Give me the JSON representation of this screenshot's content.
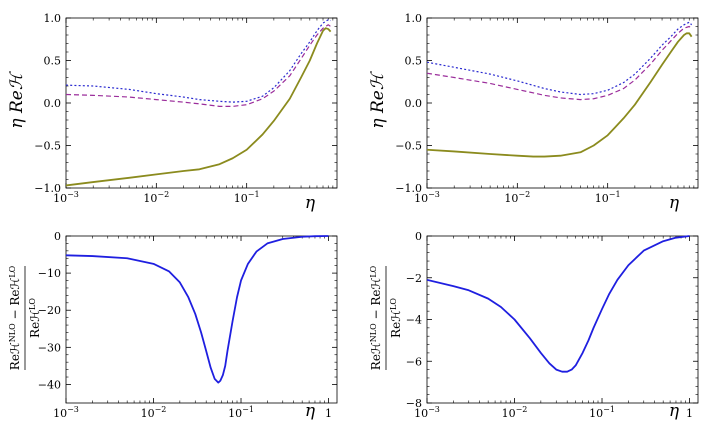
{
  "chart_data": [
    {
      "type": "line",
      "panel": "top-left",
      "xscale": "log",
      "xlim": [
        0.001,
        1
      ],
      "ylim": [
        -1.0,
        1.0
      ],
      "xlabel": "η",
      "ylabel": "η Reℋ",
      "x_ticks": [
        {
          "value": 0.001,
          "base": "10",
          "exp": "−3"
        },
        {
          "value": 0.01,
          "base": "10",
          "exp": "−2"
        },
        {
          "value": 0.1,
          "base": "10",
          "exp": "−1"
        }
      ],
      "y_ticks": [
        {
          "value": 1.0,
          "label": "1.0"
        },
        {
          "value": 0.5,
          "label": "0.5"
        },
        {
          "value": 0.0,
          "label": "0.0"
        },
        {
          "value": -0.5,
          "label": "−0.5"
        },
        {
          "value": -1.0,
          "label": "−1.0"
        }
      ],
      "series": [
        {
          "name": "solid",
          "color": "#8b8b1e",
          "style": "solid",
          "x": [
            0.001,
            0.002,
            0.005,
            0.01,
            0.02,
            0.03,
            0.05,
            0.07,
            0.1,
            0.15,
            0.2,
            0.3,
            0.4,
            0.5,
            0.6,
            0.7,
            0.75,
            0.8,
            0.85
          ],
          "y": [
            -0.97,
            -0.93,
            -0.88,
            -0.84,
            -0.8,
            -0.78,
            -0.72,
            -0.65,
            -0.55,
            -0.37,
            -0.21,
            0.05,
            0.3,
            0.5,
            0.7,
            0.85,
            0.88,
            0.87,
            0.84
          ]
        },
        {
          "name": "dashed",
          "color": "#9b2d9b",
          "style": "dashed",
          "x": [
            0.001,
            0.002,
            0.005,
            0.01,
            0.02,
            0.03,
            0.05,
            0.07,
            0.1,
            0.15,
            0.2,
            0.3,
            0.4,
            0.5,
            0.6,
            0.7,
            0.8,
            0.85
          ],
          "y": [
            0.1,
            0.09,
            0.07,
            0.04,
            0.01,
            -0.01,
            -0.04,
            -0.04,
            -0.02,
            0.05,
            0.14,
            0.32,
            0.52,
            0.68,
            0.8,
            0.88,
            0.92,
            0.9
          ]
        },
        {
          "name": "dotted",
          "color": "#2a2ad0",
          "style": "dotted",
          "x": [
            0.001,
            0.002,
            0.005,
            0.01,
            0.02,
            0.03,
            0.05,
            0.07,
            0.1,
            0.15,
            0.2,
            0.3,
            0.4,
            0.5,
            0.6,
            0.7,
            0.8,
            0.85
          ],
          "y": [
            0.21,
            0.2,
            0.16,
            0.11,
            0.07,
            0.04,
            0.02,
            0.01,
            0.02,
            0.08,
            0.18,
            0.38,
            0.58,
            0.72,
            0.85,
            0.94,
            0.98,
            0.97
          ]
        }
      ]
    },
    {
      "type": "line",
      "panel": "top-right",
      "xscale": "log",
      "xlim": [
        0.001,
        1
      ],
      "ylim": [
        -1.0,
        1.0
      ],
      "xlabel": "η",
      "ylabel": "η Reℋ",
      "x_ticks": [
        {
          "value": 0.001,
          "base": "10",
          "exp": "−3"
        },
        {
          "value": 0.01,
          "base": "10",
          "exp": "−2"
        },
        {
          "value": 0.1,
          "base": "10",
          "exp": "−1"
        }
      ],
      "y_ticks": [
        {
          "value": 1.0,
          "label": "1.0"
        },
        {
          "value": 0.5,
          "label": "0.5"
        },
        {
          "value": 0.0,
          "label": "0.0"
        },
        {
          "value": -0.5,
          "label": "−0.5"
        },
        {
          "value": -1.0,
          "label": "−1.0"
        }
      ],
      "series": [
        {
          "name": "solid",
          "color": "#8b8b1e",
          "style": "solid",
          "x": [
            0.001,
            0.002,
            0.005,
            0.01,
            0.015,
            0.02,
            0.03,
            0.05,
            0.07,
            0.1,
            0.15,
            0.2,
            0.3,
            0.4,
            0.5,
            0.6,
            0.7,
            0.75,
            0.8,
            0.85
          ],
          "y": [
            -0.55,
            -0.57,
            -0.6,
            -0.62,
            -0.63,
            -0.63,
            -0.62,
            -0.58,
            -0.5,
            -0.38,
            -0.18,
            -0.02,
            0.25,
            0.45,
            0.6,
            0.72,
            0.8,
            0.82,
            0.82,
            0.78
          ]
        },
        {
          "name": "dashed",
          "color": "#9b2d9b",
          "style": "dashed",
          "x": [
            0.001,
            0.002,
            0.005,
            0.01,
            0.02,
            0.03,
            0.05,
            0.07,
            0.1,
            0.15,
            0.2,
            0.3,
            0.4,
            0.5,
            0.6,
            0.7,
            0.8,
            0.85
          ],
          "y": [
            0.35,
            0.3,
            0.23,
            0.16,
            0.09,
            0.06,
            0.04,
            0.05,
            0.09,
            0.17,
            0.27,
            0.46,
            0.62,
            0.73,
            0.82,
            0.88,
            0.9,
            0.87
          ]
        },
        {
          "name": "dotted",
          "color": "#2a2ad0",
          "style": "dotted",
          "x": [
            0.001,
            0.002,
            0.005,
            0.01,
            0.02,
            0.03,
            0.05,
            0.07,
            0.1,
            0.15,
            0.2,
            0.3,
            0.4,
            0.5,
            0.6,
            0.7,
            0.8,
            0.85
          ],
          "y": [
            0.48,
            0.42,
            0.34,
            0.26,
            0.17,
            0.13,
            0.1,
            0.11,
            0.15,
            0.24,
            0.34,
            0.53,
            0.68,
            0.78,
            0.87,
            0.92,
            0.95,
            0.92
          ]
        }
      ]
    },
    {
      "type": "line",
      "panel": "bottom-left",
      "xscale": "log",
      "xlim": [
        0.001,
        1.25
      ],
      "ylim": [
        -45,
        0
      ],
      "xlabel": "η",
      "ylabel": "(Reℋ^NLO − Reℋ^LO) / Reℋ^LO",
      "x_ticks": [
        {
          "value": 0.001,
          "base": "10",
          "exp": "−3"
        },
        {
          "value": 0.01,
          "base": "10",
          "exp": "−2"
        },
        {
          "value": 0.1,
          "base": "10",
          "exp": "−1"
        },
        {
          "value": 1,
          "base": "1",
          "exp": ""
        }
      ],
      "y_ticks": [
        {
          "value": 0,
          "label": "0"
        },
        {
          "value": -10,
          "label": "−10"
        },
        {
          "value": -20,
          "label": "−20"
        },
        {
          "value": -30,
          "label": "−30"
        },
        {
          "value": -40,
          "label": "−40"
        }
      ],
      "series": [
        {
          "name": "ratio",
          "color": "#1f1fe0",
          "style": "solid",
          "x": [
            0.001,
            0.002,
            0.005,
            0.01,
            0.015,
            0.02,
            0.025,
            0.03,
            0.035,
            0.04,
            0.045,
            0.05,
            0.055,
            0.058,
            0.062,
            0.066,
            0.07,
            0.08,
            0.09,
            0.1,
            0.12,
            0.15,
            0.2,
            0.3,
            0.5,
            0.7,
            1.0
          ],
          "y": [
            -5.2,
            -5.4,
            -6.0,
            -7.5,
            -9.5,
            -12.5,
            -16.5,
            -21.0,
            -26.0,
            -31.0,
            -35.5,
            -38.5,
            -39.5,
            -39.0,
            -37.5,
            -35.0,
            -31.0,
            -23.0,
            -16.5,
            -12.0,
            -7.5,
            -4.2,
            -2.0,
            -0.8,
            -0.2,
            -0.05,
            0
          ]
        }
      ]
    },
    {
      "type": "line",
      "panel": "bottom-right",
      "xscale": "log",
      "xlim": [
        0.001,
        1.25
      ],
      "ylim": [
        -8,
        0
      ],
      "xlabel": "η",
      "ylabel": "(Reℋ^NLO − Reℋ^LO) / Reℋ^LO",
      "x_ticks": [
        {
          "value": 0.001,
          "base": "10",
          "exp": "−3"
        },
        {
          "value": 0.01,
          "base": "10",
          "exp": "−2"
        },
        {
          "value": 0.1,
          "base": "10",
          "exp": "−1"
        },
        {
          "value": 1,
          "base": "1",
          "exp": ""
        }
      ],
      "y_ticks": [
        {
          "value": 0,
          "label": "0"
        },
        {
          "value": -2,
          "label": "−2"
        },
        {
          "value": -4,
          "label": "−4"
        },
        {
          "value": -6,
          "label": "−6"
        },
        {
          "value": -8,
          "label": "−8"
        }
      ],
      "series": [
        {
          "name": "ratio",
          "color": "#1f1fe0",
          "style": "solid",
          "x": [
            0.001,
            0.002,
            0.003,
            0.005,
            0.007,
            0.01,
            0.015,
            0.02,
            0.025,
            0.03,
            0.035,
            0.04,
            0.045,
            0.05,
            0.06,
            0.07,
            0.08,
            0.1,
            0.12,
            0.15,
            0.2,
            0.3,
            0.5,
            0.7,
            1.0
          ],
          "y": [
            -2.1,
            -2.4,
            -2.6,
            -3.0,
            -3.4,
            -4.0,
            -4.9,
            -5.6,
            -6.1,
            -6.4,
            -6.5,
            -6.5,
            -6.4,
            -6.2,
            -5.6,
            -5.0,
            -4.4,
            -3.5,
            -2.8,
            -2.1,
            -1.4,
            -0.7,
            -0.25,
            -0.08,
            0
          ]
        }
      ]
    }
  ]
}
